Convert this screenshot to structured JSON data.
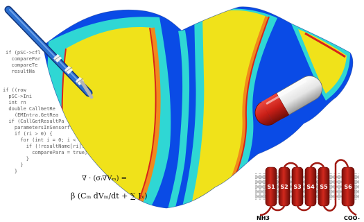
{
  "code_lines": [
    "if (pSC->cfl",
    "  comparePar",
    "  compareTe",
    "  resultNa",
    "if ((row",
    "  pSC->Ini",
    "  int rn",
    "  double CallGetRe",
    "    (EMIntra.GetRea",
    "  if (CallGetResultPa",
    "    parametersInSensorflo",
    "    if (ri > 0) {",
    "      for (int i = 0; i < ri;",
    "        if (!resultName[ri].compare",
    "          comparePara = true;",
    "        }",
    "      }",
    "    }"
  ],
  "equation": {
    "line1": "∇ · (σᵢ∇Vₘ) =",
    "line2": "β (Cₘ dVₘ/dt + ∑ Iₓ)"
  },
  "channel": {
    "segments": [
      "S1",
      "S2",
      "S3",
      "S4",
      "S5",
      "S6"
    ],
    "n_terminus": "NH3",
    "c_terminus": "COO-"
  },
  "colors": {
    "tissue_blue": "#0a4be6",
    "tissue_cyan": "#2fd7d4",
    "tissue_yellow": "#f0e21a",
    "tissue_orange": "#f08a1b",
    "tissue_red": "#d8241b",
    "pill_red": "#c91f17",
    "pill_white": "#e8e8e8",
    "channel_red": "#b01b12",
    "membrane_gray": "#bdbdbd",
    "probe_blue": "#2b6fd0"
  }
}
